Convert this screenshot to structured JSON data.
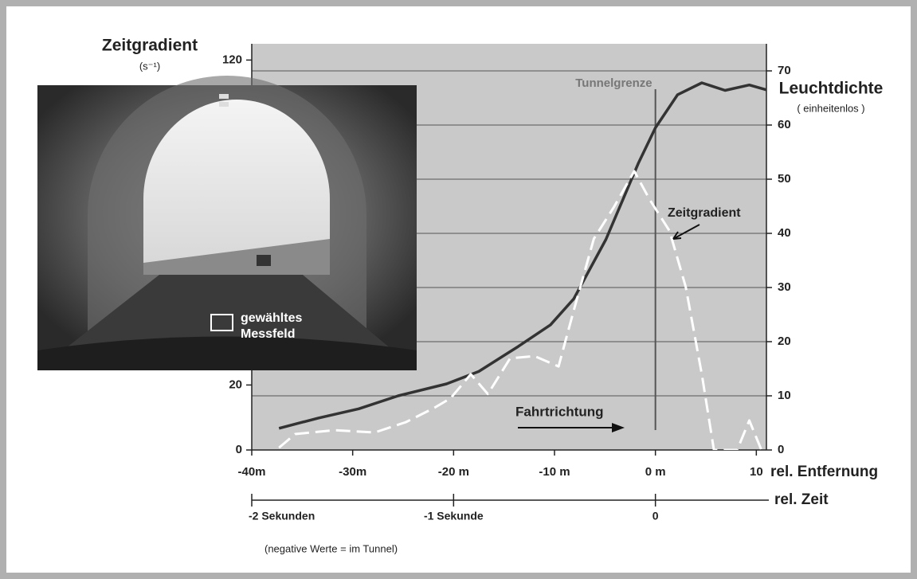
{
  "chart_data": {
    "type": "line",
    "y_title": "Zeitgradient",
    "y_unit": "(s⁻¹)",
    "y2_title": "Leuchtdichte",
    "y2_unit": "( einheitenlos )",
    "x_title": "rel. Entfernung",
    "x2_title": "rel. Zeit",
    "note": "(negative Werte = im Tunnel)",
    "xlim": [
      -40,
      11
    ],
    "xticks": [
      {
        "value": -40,
        "label": "-40m"
      },
      {
        "value": -30,
        "label": "-30m"
      },
      {
        "value": -20,
        "label": "-20 m"
      },
      {
        "value": -10,
        "label": "-10 m"
      },
      {
        "value": 0,
        "label": "0 m"
      },
      10
    ],
    "x2lim": [
      -2,
      0.55
    ],
    "x2ticks": [
      {
        "value": -2,
        "label": "-2 Sekunden"
      },
      {
        "value": -1,
        "label": "-1 Sekunde"
      },
      0
    ],
    "ylim": [
      0,
      125
    ],
    "yticks": [
      0,
      20,
      120
    ],
    "y2lim": [
      0,
      75
    ],
    "y2ticks": [
      0,
      10,
      20,
      30,
      40,
      50,
      60,
      70
    ],
    "grid": true,
    "boundary": {
      "label": "Tunnelgrenze",
      "x": 0
    },
    "annotations": {
      "gradient": "Zeitgradient",
      "direction": "Fahrtrichtung"
    },
    "photo": {
      "label_1": "gewähltes",
      "label_2": "Messfeld"
    },
    "series": [
      {
        "name": "Leuchtdichte",
        "color": "#333333",
        "axis": "y2",
        "dash": false,
        "x": [
          -37.3,
          -33.4,
          -29.4,
          -25.5,
          -20.7,
          -17.5,
          -13.6,
          -10.4,
          -8.1,
          -4.9,
          -1.7,
          0,
          2.2,
          4.6,
          6.9,
          9.3,
          11
        ],
        "values": [
          4.0,
          5.9,
          7.6,
          10.0,
          12.2,
          14.5,
          19.1,
          23.1,
          27.9,
          38.9,
          52.9,
          59.5,
          65.6,
          67.8,
          66.4,
          67.4,
          66.5
        ]
      },
      {
        "name": "Zeitgradient",
        "color": "#ffffff",
        "axis": "y",
        "dash": true,
        "x": [
          -37.3,
          -35.7,
          -31.8,
          -27.8,
          -24.7,
          -21.9,
          -20.3,
          -18.3,
          -16.6,
          -14.4,
          -12.0,
          -9.6,
          -8.1,
          -6.1,
          -4.1,
          -2.1,
          -0.6,
          1.4,
          3.0,
          4.6,
          5.8,
          8.1,
          9.3,
          10.5
        ],
        "values": [
          0.7,
          4.9,
          6.1,
          5.4,
          8.6,
          13,
          15.9,
          23.3,
          17.2,
          28.2,
          28.9,
          25.7,
          42.9,
          65,
          74.8,
          85.8,
          77.2,
          67.4,
          50.2,
          23.3,
          0,
          0,
          9.1,
          0
        ]
      }
    ]
  }
}
